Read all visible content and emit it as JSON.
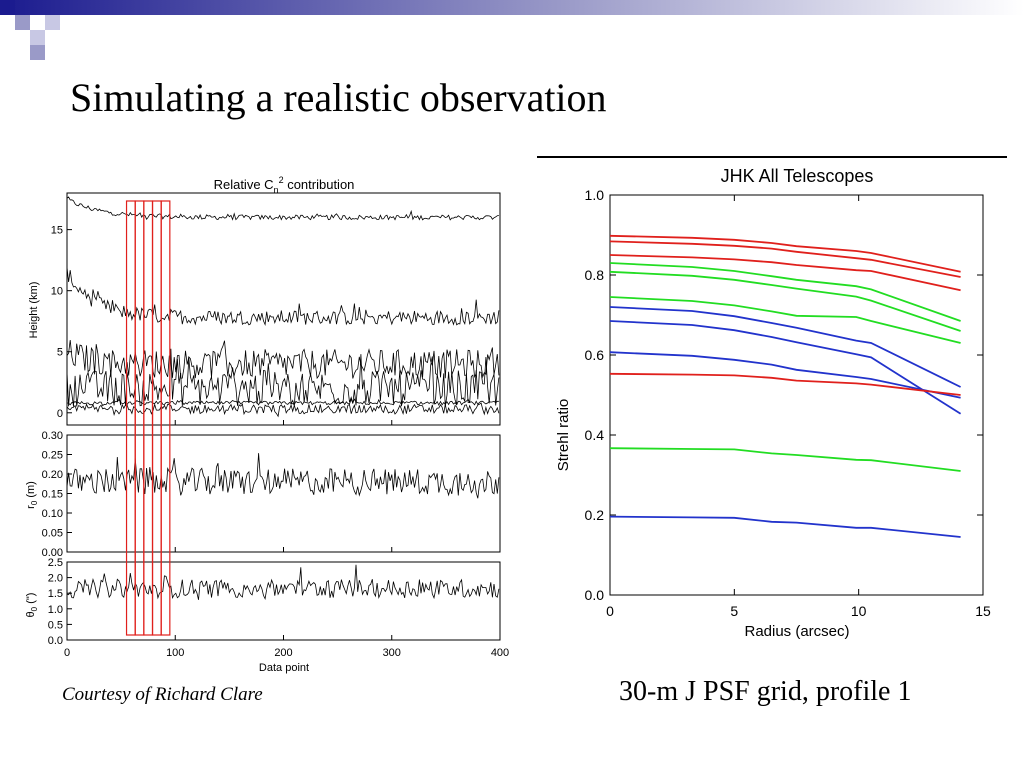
{
  "slide": {
    "title": "Simulating a realistic observation",
    "courtesy": "Courtesy of Richard Clare",
    "caption": "30-m J PSF grid, profile 1"
  },
  "colors": {
    "header_bar": "#1b1b8f",
    "red": "#e0201c",
    "green": "#22dd22",
    "blue": "#2233cc"
  },
  "chart_data": [
    {
      "type": "line",
      "title": "Relative C_n^2 contribution",
      "title_parts": {
        "main": "Relative C",
        "sub": "n",
        "sup": "2",
        "tail": " contribution"
      },
      "xlabel": "Data point",
      "xlim": [
        0,
        400
      ],
      "xticks": [
        "0",
        "100",
        "200",
        "300",
        "400"
      ],
      "highlight_columns": {
        "range": [
          55,
          95
        ],
        "count": 5,
        "color": "#e0201c"
      },
      "panels": [
        {
          "ylabel": "Height (km)",
          "ylim": [
            -1,
            18
          ],
          "yticks": [
            0,
            5,
            10,
            15
          ],
          "series": [
            {
              "baseline": 16.0,
              "noise": 0.2,
              "start": 17.5,
              "decay": 30
            },
            {
              "baseline": 7.8,
              "noise": 0.6,
              "start": 11.5,
              "decay": 25
            },
            {
              "baseline": 4.0,
              "noise": 1.2,
              "start": 5.0,
              "decay": 20
            },
            {
              "baseline": 2.0,
              "noise": 1.5,
              "start": 2.0,
              "decay": 10
            },
            {
              "baseline": 0.8,
              "noise": 0.15,
              "start": 0.8,
              "decay": 10
            },
            {
              "baseline": 0.3,
              "noise": 0.4,
              "start": 0.3,
              "decay": 10
            }
          ]
        },
        {
          "ylabel": "r0 (m)",
          "ylabel_parts": {
            "main": "r",
            "sub": "0",
            "tail": " (m)"
          },
          "ylim": [
            0.0,
            0.3
          ],
          "yticks": [
            "0.00",
            "0.05",
            "0.10",
            "0.15",
            "0.20",
            "0.25",
            "0.30"
          ],
          "series": [
            {
              "baseline": 0.18,
              "noise": 0.035
            }
          ]
        },
        {
          "ylabel": "θ0 (\")",
          "ylabel_parts": {
            "main": "θ",
            "sub": "0",
            "tail": " (\")"
          },
          "ylim": [
            0.0,
            2.5
          ],
          "yticks": [
            "0.0",
            "0.5",
            "1.0",
            "1.5",
            "2.0",
            "2.5"
          ],
          "series": [
            {
              "baseline": 1.65,
              "noise": 0.3
            }
          ]
        }
      ]
    },
    {
      "type": "line",
      "title": "JHK All Telescopes",
      "xlabel": "Radius (arcsec)",
      "ylabel": "Strehl ratio",
      "xlim": [
        0,
        15
      ],
      "ylim": [
        0.0,
        1.0
      ],
      "xticks": [
        "0",
        "5",
        "10",
        "15"
      ],
      "yticks": [
        "0.0",
        "0.2",
        "0.4",
        "0.6",
        "0.8",
        "1.0"
      ],
      "x": [
        0,
        3.3,
        5,
        6.5,
        7.5,
        9.9,
        10.5,
        14.1
      ],
      "series": [
        {
          "color": "red",
          "values": [
            0.898,
            0.893,
            0.888,
            0.88,
            0.872,
            0.86,
            0.855,
            0.808
          ]
        },
        {
          "color": "red",
          "values": [
            0.884,
            0.878,
            0.873,
            0.866,
            0.858,
            0.842,
            0.838,
            0.795
          ]
        },
        {
          "color": "red",
          "values": [
            0.85,
            0.844,
            0.839,
            0.832,
            0.825,
            0.812,
            0.81,
            0.762
          ]
        },
        {
          "color": "green",
          "values": [
            0.83,
            0.82,
            0.81,
            0.797,
            0.788,
            0.772,
            0.764,
            0.685
          ]
        },
        {
          "color": "green",
          "values": [
            0.808,
            0.798,
            0.788,
            0.775,
            0.766,
            0.746,
            0.736,
            0.66
          ]
        },
        {
          "color": "green",
          "values": [
            0.745,
            0.735,
            0.724,
            0.709,
            0.698,
            0.695,
            0.685,
            0.63
          ]
        },
        {
          "color": "blue",
          "values": [
            0.72,
            0.71,
            0.697,
            0.68,
            0.668,
            0.636,
            0.63,
            0.52
          ]
        },
        {
          "color": "blue",
          "values": [
            0.685,
            0.675,
            0.662,
            0.645,
            0.632,
            0.602,
            0.594,
            0.453
          ]
        },
        {
          "color": "blue",
          "values": [
            0.607,
            0.598,
            0.588,
            0.576,
            0.563,
            0.545,
            0.54,
            0.493
          ]
        },
        {
          "color": "red",
          "values": [
            0.553,
            0.551,
            0.549,
            0.543,
            0.536,
            0.529,
            0.526,
            0.5
          ]
        },
        {
          "color": "green",
          "values": [
            0.367,
            0.365,
            0.364,
            0.354,
            0.35,
            0.338,
            0.337,
            0.31
          ]
        },
        {
          "color": "blue",
          "values": [
            0.196,
            0.194,
            0.193,
            0.183,
            0.181,
            0.168,
            0.168,
            0.145
          ]
        }
      ]
    }
  ]
}
